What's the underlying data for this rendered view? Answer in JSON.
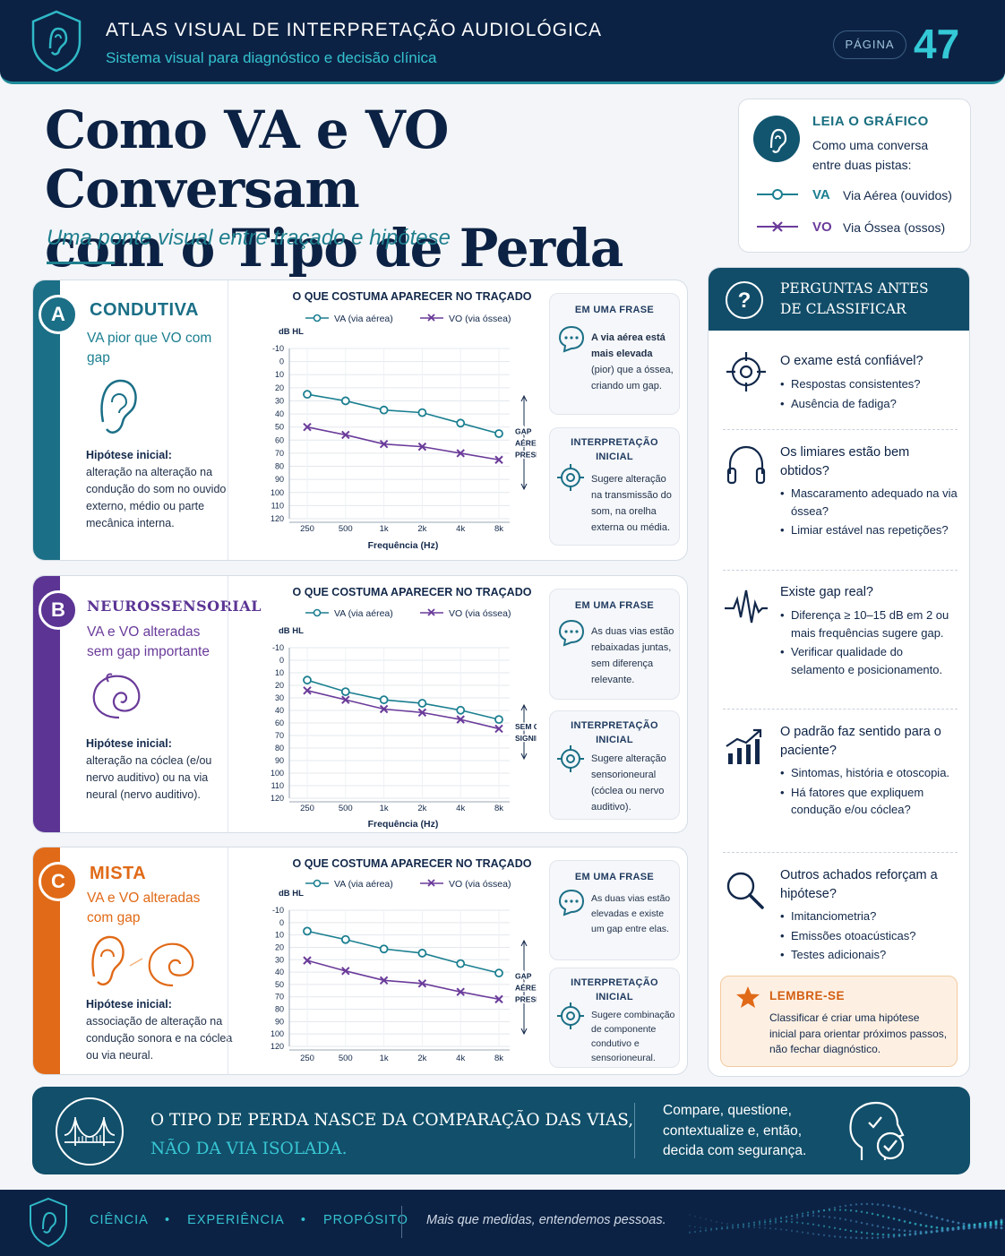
{
  "header": {
    "title": "ATLAS VISUAL DE INTERPRETAÇÃO AUDIOLÓGICA",
    "subtitle": "Sistema visual para diagnóstico e decisão clínica",
    "page_label": "PÁGINA",
    "page_number": "47",
    "logo_icon": "ear-shield-icon"
  },
  "title": {
    "line1": "Como VA e VO Conversam",
    "line2": "com o Tipo de Perda",
    "subtitle": "Uma ponte visual entre traçado e hipótese"
  },
  "legend": {
    "heading": "LEIA O GRÁFICO",
    "text1": "Como uma conversa",
    "text2": "entre duas pistas:",
    "va_abbr": "VA",
    "va_label": "Via Aérea (ouvidos)",
    "vo_abbr": "VO",
    "vo_label": "Via Óssea (ossos)",
    "colors": {
      "va": "#1b7f90",
      "vo": "#6a3b9a"
    }
  },
  "panels": [
    {
      "letter": "A",
      "title": "CONDUTIVA",
      "subtitle": "VA pior que VO com gap",
      "hyp_head": "Hipótese inicial:",
      "hyp_text": "alteração na alteração na condução do som no ouvido externo, médio ou parte mecânica interna.",
      "color": "#1b6f86",
      "icon": "ear-icon",
      "chart_heading": "O QUE COSTUMA APARECER NO TRAÇADO",
      "legend_va": "VA (via aérea)",
      "legend_vo": "VO (via óssea)",
      "gap_lines": [
        "GAP",
        "AÉREO-ÓSSEO",
        "PRESENTE"
      ],
      "has_xlabel": true,
      "phrase_head": "EM UMA FRASE",
      "phrase_text_bold": "A via aérea está mais elevada",
      "phrase_text": "(pior) que a óssea, criando um gap.",
      "interp_head": "INTERPRETAÇÃO INICIAL",
      "interp_text": "Sugere alteração na transmissão do som, na orelha externa ou média."
    },
    {
      "letter": "B",
      "title": "NEUROSSENSORIAL",
      "subtitle": "VA e VO alteradas sem gap importante",
      "hyp_head": "Hipótese inicial:",
      "hyp_text": "alteração na cóclea (e/ou nervo auditivo) ou na via neural (nervo auditivo).",
      "color": "#5b3494",
      "icon": "cochlea-icon",
      "chart_heading": "O QUE COSTUMA APARECER NO TRAÇADO",
      "legend_va": "VA (via aérea)",
      "legend_vo": "VO (via óssea)",
      "gap_lines": [
        "SEM GAP",
        "SIGNIFICATIVO"
      ],
      "has_xlabel": true,
      "phrase_head": "EM UMA FRASE",
      "phrase_text_bold": "",
      "phrase_text": "As duas vias estão rebaixadas juntas, sem diferença relevante.",
      "interp_head": "INTERPRETAÇÃO INICIAL",
      "interp_text": "Sugere alteração sensorioneural (cóclea ou nervo auditivo)."
    },
    {
      "letter": "C",
      "title": "MISTA",
      "subtitle": "VA e VO alteradas com gap",
      "hyp_head": "Hipótese inicial:",
      "hyp_text": "associação de alteração na condução sonora e na cóclea ou via neural.",
      "color": "#e06a17",
      "icon": "ear-cochlea-icon",
      "chart_heading": "O QUE COSTUMA APARECER NO TRAÇADO",
      "legend_va": "VA (via aérea)",
      "legend_vo": "VO (via óssea)",
      "gap_lines": [
        "GAP",
        "AÉREO-ÓSSEO",
        "PRESENTE"
      ],
      "has_xlabel": false,
      "phrase_head": "EM UMA FRASE",
      "phrase_text_bold": "",
      "phrase_text": "As duas vias estão elevadas e existe um gap entre elas.",
      "interp_head": "INTERPRETAÇÃO INICIAL",
      "interp_text": "Sugere combinação de componente condutivo e sensorioneural."
    }
  ],
  "chart_data": [
    {
      "type": "line",
      "title": "O QUE COSTUMA APARECER NO TRAÇADO",
      "ylabel": "dB HL",
      "xlabel": "Frequência (Hz)",
      "categories": [
        "250",
        "500",
        "1k",
        "2k",
        "4k",
        "8k"
      ],
      "yticks": [
        "-10",
        "0",
        "10",
        "20",
        "30",
        "40",
        "50",
        "60",
        "70",
        "80",
        "90",
        "100",
        "110",
        "120"
      ],
      "ylim": [
        -10,
        120
      ],
      "y_inverted": true,
      "series": [
        {
          "name": "VA (via aérea)",
          "values": [
            25,
            30,
            37,
            39,
            47,
            55
          ]
        },
        {
          "name": "VO (via óssea)",
          "values": [
            50,
            56,
            63,
            65,
            70,
            75
          ]
        }
      ]
    },
    {
      "type": "line",
      "title": "O QUE COSTUMA APARECER NO TRAÇADO",
      "ylabel": "dB HL",
      "xlabel": "Frequência (Hz)",
      "categories": [
        "250",
        "500",
        "1k",
        "2k",
        "4k",
        "8k"
      ],
      "yticks": [
        "-10",
        "0",
        "10",
        "20",
        "30",
        "40",
        "60",
        "70",
        "80",
        "90",
        "100",
        "110",
        "120"
      ],
      "ylim": [
        -10,
        120
      ],
      "y_inverted": true,
      "series": [
        {
          "name": "VA (via aérea)",
          "values": [
            18,
            28,
            35,
            38,
            44,
            52
          ]
        },
        {
          "name": "VO (via óssea)",
          "values": [
            27,
            35,
            43,
            46,
            52,
            60
          ]
        }
      ]
    },
    {
      "type": "line",
      "title": "O QUE COSTUMA APARECER NO TRAÇADO",
      "ylabel": "dB HL",
      "xlabel": "",
      "categories": [
        "250",
        "500",
        "1k",
        "2k",
        "4k",
        "8k"
      ],
      "yticks": [
        "-10",
        "0",
        "10",
        "20",
        "30",
        "40",
        "50",
        "70",
        "80",
        "90",
        "100",
        "120"
      ],
      "ylim": [
        -10,
        120
      ],
      "y_inverted": true,
      "series": [
        {
          "name": "VA (via aérea)",
          "values": [
            10,
            18,
            27,
            31,
            41,
            50
          ]
        },
        {
          "name": "VO (via óssea)",
          "values": [
            38,
            48,
            57,
            60,
            68,
            75
          ]
        }
      ]
    }
  ],
  "questions": {
    "heading_line1": "PERGUNTAS ANTES",
    "heading_line2": "DE CLASSIFICAR",
    "items": [
      {
        "icon": "target-icon",
        "title": "O exame está confiável?",
        "bullets": [
          "Respostas consistentes?",
          "Ausência de fadiga?"
        ]
      },
      {
        "icon": "headphones-icon",
        "title": "Os limiares estão bem obtidos?",
        "bullets": [
          "Mascaramento adequado na via óssea?",
          "Limiar estável nas repetições?"
        ]
      },
      {
        "icon": "waveform-icon",
        "title": "Existe gap real?",
        "bullets": [
          "Diferença ≥ 10–15 dB em 2 ou mais frequências sugere gap.",
          "Verificar qualidade do selamento e posicionamento."
        ]
      },
      {
        "icon": "trend-chart-icon",
        "title": "O padrão faz sentido para o paciente?",
        "bullets": [
          "Sintomas, história e otoscopia.",
          "Há fatores que expliquem condução e/ou cóclea?"
        ]
      },
      {
        "icon": "magnifier-icon",
        "title": "Outros achados reforçam a hipótese?",
        "bullets": [
          "Imitanciometria?",
          "Emissões otoacústicas?",
          "Testes adicionais?"
        ]
      }
    ]
  },
  "remember": {
    "heading": "LEMBRE-SE",
    "text": "Classificar é criar uma hipótese inicial para orientar próximos passos, não fechar diagnóstico."
  },
  "banner": {
    "line1": "O TIPO DE PERDA NASCE DA COMPARAÇÃO DAS VIAS,",
    "line2": "NÃO DA VIA ISOLADA.",
    "right": "Compare, questione, contextualize e, então, decida com segurança."
  },
  "footer": {
    "w1": "CIÊNCIA",
    "w2": "EXPERIÊNCIA",
    "w3": "PROPÓSITO",
    "tagline": "Mais que medidas, entendemos pessoas."
  }
}
